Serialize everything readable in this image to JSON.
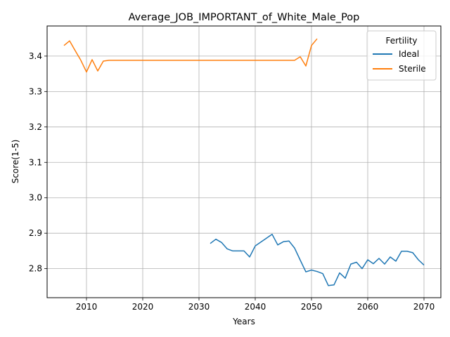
{
  "chart_data": {
    "type": "line",
    "title": "Average_JOB_IMPORTANT_of_White_Male_Pop",
    "xlabel": "Years",
    "ylabel": "Score(1-5)",
    "xlim": [
      2003,
      2073
    ],
    "ylim": [
      2.718,
      3.485
    ],
    "xticks": [
      2010,
      2020,
      2030,
      2040,
      2050,
      2060,
      2070
    ],
    "yticks": [
      2.8,
      2.9,
      3.0,
      3.1,
      3.2,
      3.3,
      3.4
    ],
    "xtick_labels": [
      "2010",
      "2020",
      "2030",
      "2040",
      "2050",
      "2060",
      "2070"
    ],
    "ytick_labels": [
      "2.8",
      "2.9",
      "3.0",
      "3.1",
      "3.2",
      "3.3",
      "3.4"
    ],
    "grid": true,
    "legend": {
      "title": "Fertility",
      "position": "top-right"
    },
    "series": [
      {
        "name": "Ideal",
        "color": "#1f77b4",
        "x": [
          2032,
          2033,
          2034,
          2035,
          2036,
          2037,
          2038,
          2039,
          2040,
          2041,
          2042,
          2043,
          2044,
          2045,
          2046,
          2047,
          2048,
          2049,
          2050,
          2051,
          2052,
          2053,
          2054,
          2055,
          2056,
          2057,
          2058,
          2059,
          2060,
          2061,
          2062,
          2063,
          2064,
          2065,
          2066,
          2067,
          2068,
          2069,
          2070
        ],
        "y": [
          2.871,
          2.883,
          2.874,
          2.856,
          2.85,
          2.85,
          2.85,
          2.833,
          2.864,
          2.875,
          2.886,
          2.897,
          2.867,
          2.876,
          2.878,
          2.858,
          2.824,
          2.791,
          2.796,
          2.792,
          2.786,
          2.752,
          2.754,
          2.788,
          2.773,
          2.813,
          2.818,
          2.8,
          2.825,
          2.814,
          2.829,
          2.813,
          2.833,
          2.821,
          2.849,
          2.849,
          2.845,
          2.825,
          2.81
        ]
      },
      {
        "name": "Sterile",
        "color": "#ff7f0e",
        "x": [
          2006,
          2007,
          2008,
          2009,
          2010,
          2011,
          2012,
          2013,
          2014,
          2015,
          2020,
          2025,
          2030,
          2035,
          2040,
          2045,
          2046,
          2047,
          2048,
          2049,
          2050,
          2051
        ],
        "y": [
          3.43,
          3.443,
          3.415,
          3.388,
          3.355,
          3.39,
          3.358,
          3.386,
          3.388,
          3.388,
          3.388,
          3.388,
          3.388,
          3.388,
          3.388,
          3.388,
          3.388,
          3.388,
          3.398,
          3.372,
          3.43,
          3.449
        ]
      }
    ]
  }
}
